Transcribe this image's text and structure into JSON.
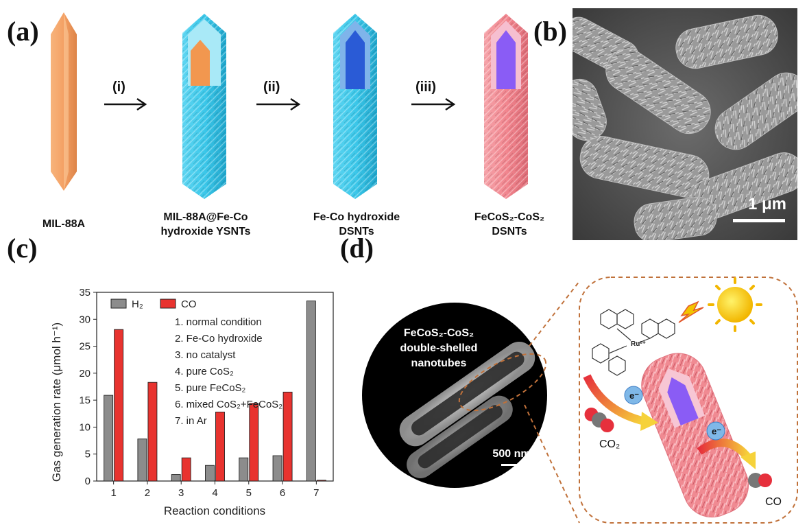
{
  "panels": {
    "a": "(a)",
    "b": "(b)",
    "c": "(c)",
    "d": "(d)"
  },
  "scheme": {
    "steps": [
      "(i)",
      "(ii)",
      "(iii)"
    ],
    "captions": [
      [
        "MIL-88A"
      ],
      [
        "MIL-88A@Fe-Co",
        "hydroxide YSNTs"
      ],
      [
        "Fe-Co hydroxide",
        "DSNTs"
      ],
      [
        "FeCoS₂-CoS₂",
        "DSNTs"
      ]
    ],
    "colors": {
      "mof": "#f4a064",
      "hydroxide": "#3cc8ea",
      "sulfide": "#f2868f",
      "core_dark": "#2a5bd6",
      "core_violet": "#8a5cf5"
    }
  },
  "sem": {
    "scalebar": "1 μm"
  },
  "chart_data": {
    "type": "bar",
    "categories": [
      "1",
      "2",
      "3",
      "4",
      "5",
      "6",
      "7"
    ],
    "series": [
      {
        "name": "H₂",
        "values": [
          15.9,
          7.8,
          1.2,
          2.9,
          4.3,
          4.7,
          33.4
        ],
        "color": "#8c8c8c"
      },
      {
        "name": "CO",
        "values": [
          28.1,
          18.3,
          4.3,
          12.8,
          14.4,
          16.5,
          0.15
        ],
        "color": "#e8332f"
      }
    ],
    "xlabel": "Reaction conditions",
    "ylabel": "Gas generation rate (μmol h⁻¹)",
    "ylim": [
      0,
      35
    ],
    "yticks": [
      0,
      5,
      10,
      15,
      20,
      25,
      30,
      35
    ],
    "legend_placement": "top-left",
    "annotations": [
      "1. normal condition",
      "2. Fe-Co hydroxide",
      "3. no catalyst",
      "4. pure CoS₂",
      "5. pure FeCoS₂",
      "6. mixed CoS₂+FeCoS₂",
      "7. in Ar"
    ]
  },
  "tem": {
    "label": [
      "FeCoS₂-CoS₂",
      "double-shelled",
      "nanotubes"
    ],
    "scalebar": "500 nm"
  },
  "mechanism": {
    "ru": "Ru²⁺",
    "electron": "e⁻",
    "co2": "CO₂",
    "co": "CO"
  }
}
